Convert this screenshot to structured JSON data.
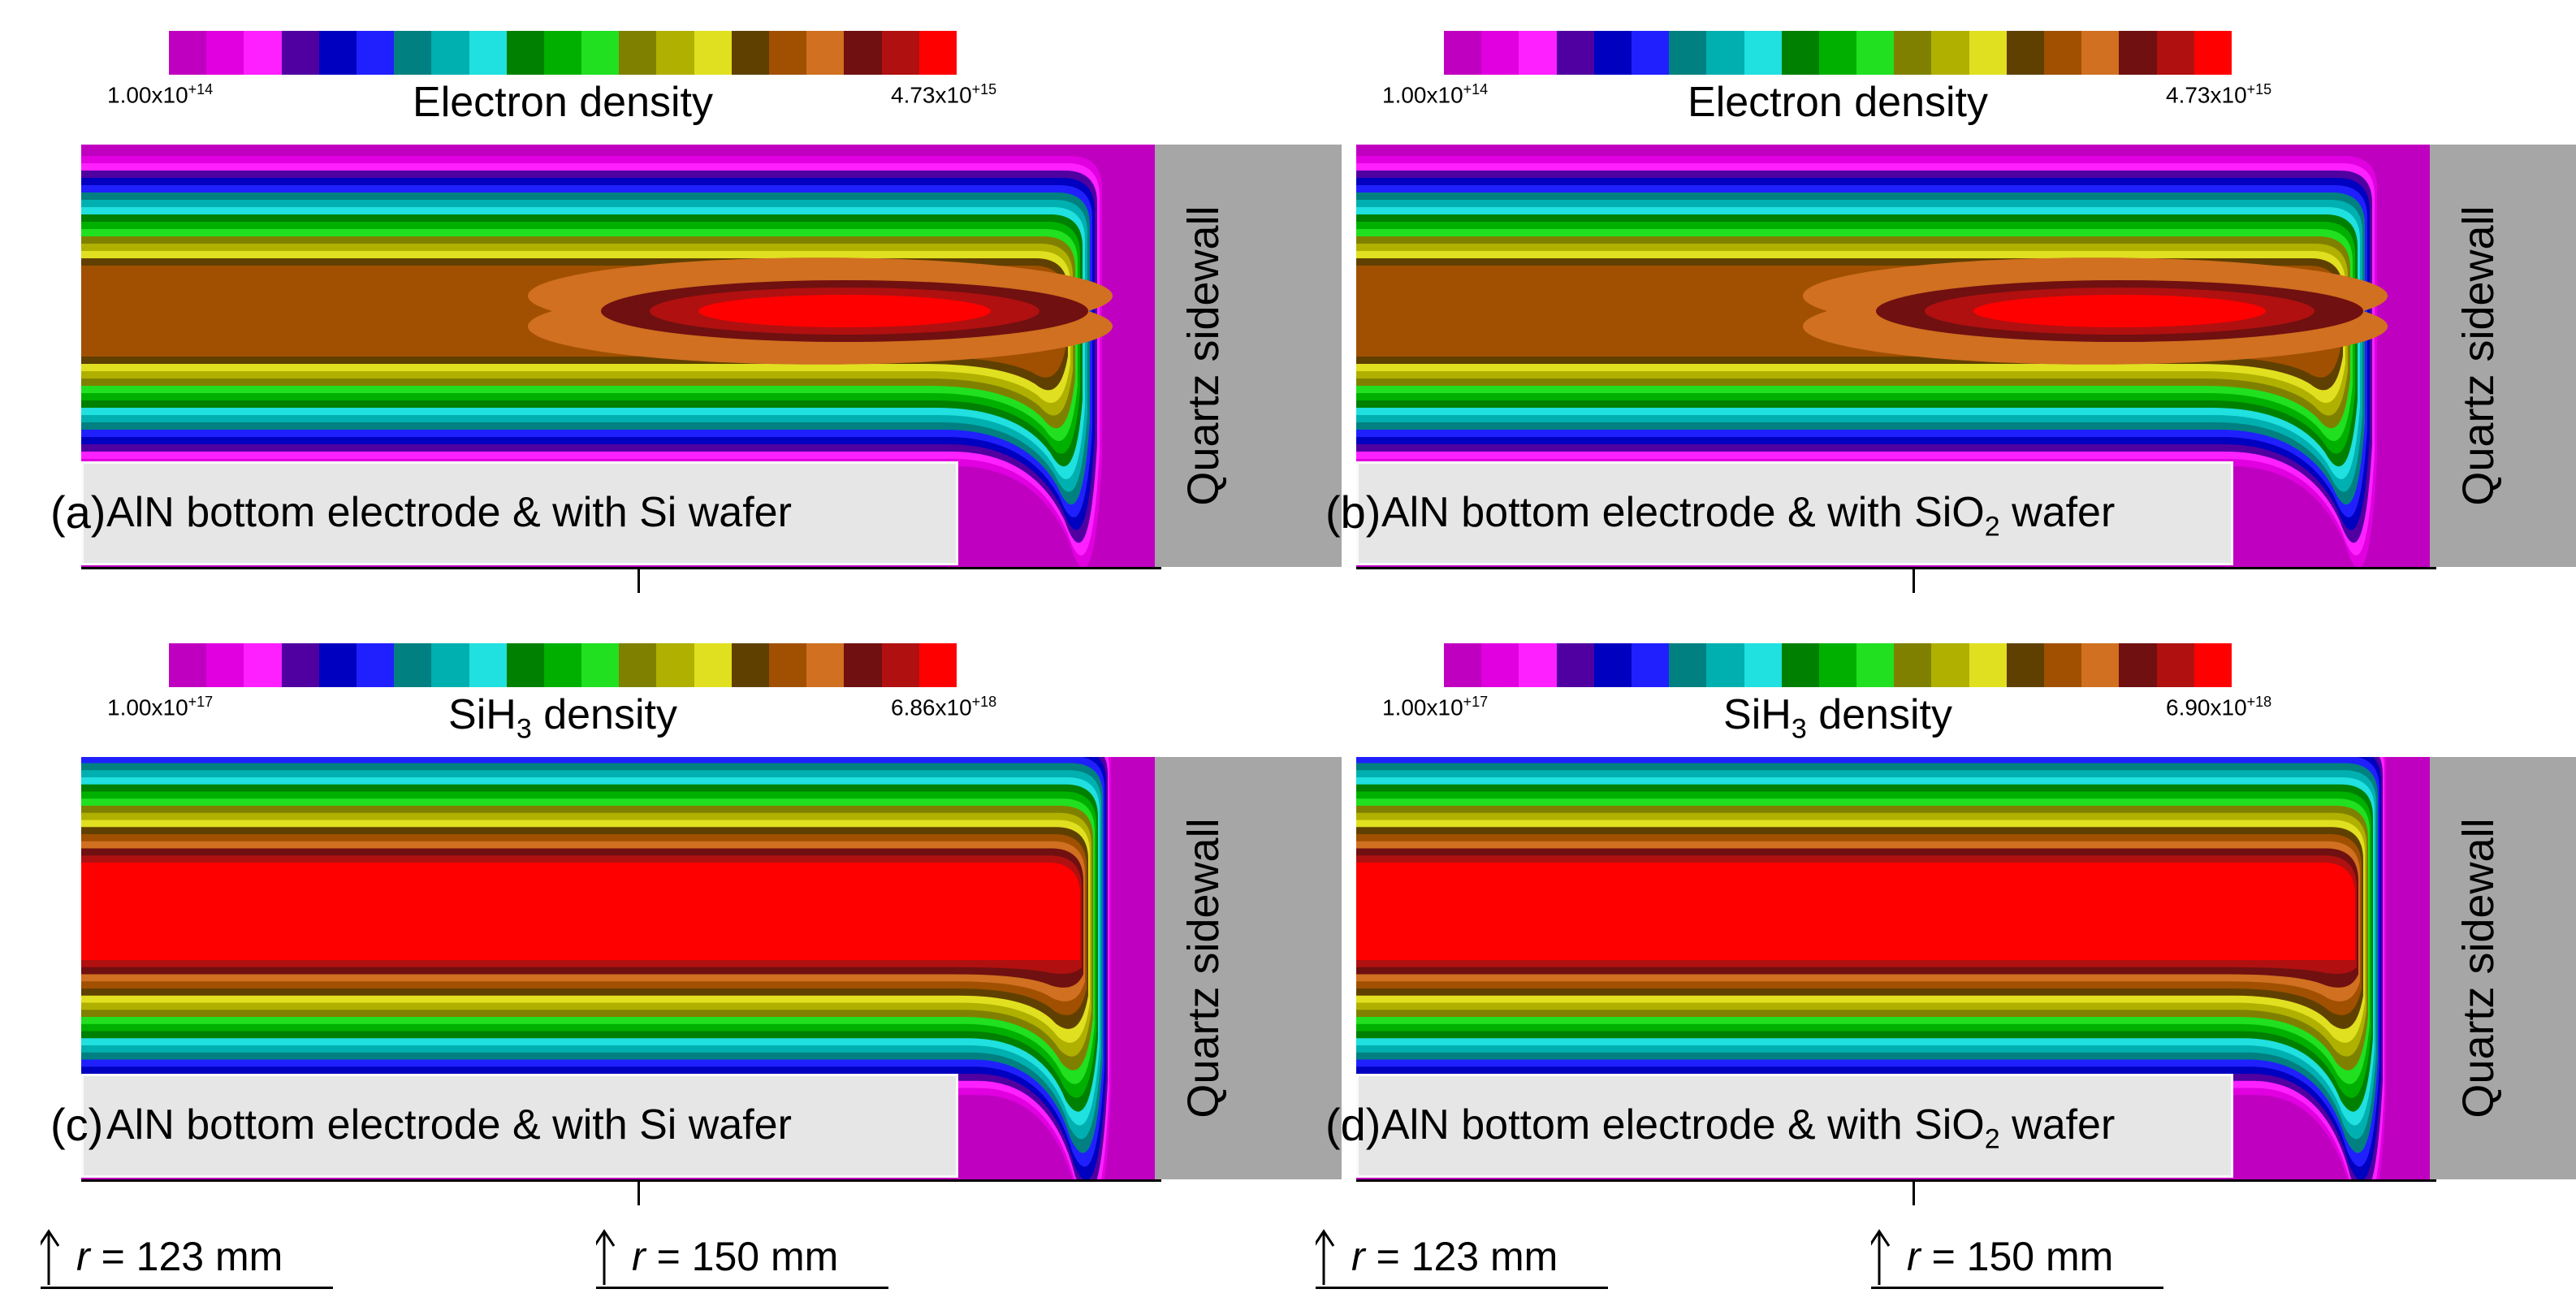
{
  "colormap": [
    "#c000c0",
    "#e000e0",
    "#ff20ff",
    "#5000a0",
    "#0000c0",
    "#2020ff",
    "#008080",
    "#00b0b0",
    "#20e0e0",
    "#008000",
    "#00b000",
    "#20e020",
    "#808000",
    "#b0b000",
    "#e0e020",
    "#604000",
    "#a05000",
    "#d07020",
    "#701010",
    "#b01010",
    "#ff0000"
  ],
  "panels": [
    {
      "id": "a",
      "label": "(a)",
      "cb_min": "1.00x10",
      "cb_min_exp": "+14",
      "cb_max": "4.73x10",
      "cb_max_exp": "+15",
      "title": "Electron density",
      "title_sub": "",
      "electrode_pre": "AlN bottom electrode & with Si wafer",
      "electrode_sub": "",
      "electrode_post": "",
      "wall": "Quartz sidewall",
      "species": "electron"
    },
    {
      "id": "b",
      "label": "(b)",
      "cb_min": "1.00x10",
      "cb_min_exp": "+14",
      "cb_max": "4.73x10",
      "cb_max_exp": "+15",
      "title": "Electron density",
      "title_sub": "",
      "electrode_pre": "AlN bottom electrode & with SiO",
      "electrode_sub": "2",
      "electrode_post": " wafer",
      "wall": "Quartz sidewall",
      "species": "electron"
    },
    {
      "id": "c",
      "label": "(c)",
      "cb_min": "1.00x10",
      "cb_min_exp": "+17",
      "cb_max": "6.86x10",
      "cb_max_exp": "+18",
      "title": "SiH",
      "title_sub": "3",
      "title_post": " density",
      "electrode_pre": "AlN bottom electrode & with Si wafer",
      "electrode_sub": "",
      "electrode_post": "",
      "wall": "Quartz sidewall",
      "species": "sih3"
    },
    {
      "id": "d",
      "label": "(d)",
      "cb_min": "1.00x10",
      "cb_min_exp": "+17",
      "cb_max": "6.90x10",
      "cb_max_exp": "+18",
      "title": "SiH",
      "title_sub": "3",
      "title_post": " density",
      "electrode_pre": "AlN bottom electrode & with SiO",
      "electrode_sub": "2",
      "electrode_post": " wafer",
      "wall": "Quartz sidewall",
      "species": "sih3"
    }
  ],
  "markers": {
    "left": "= 123 mm",
    "right": "= 150 mm",
    "var": "r"
  }
}
